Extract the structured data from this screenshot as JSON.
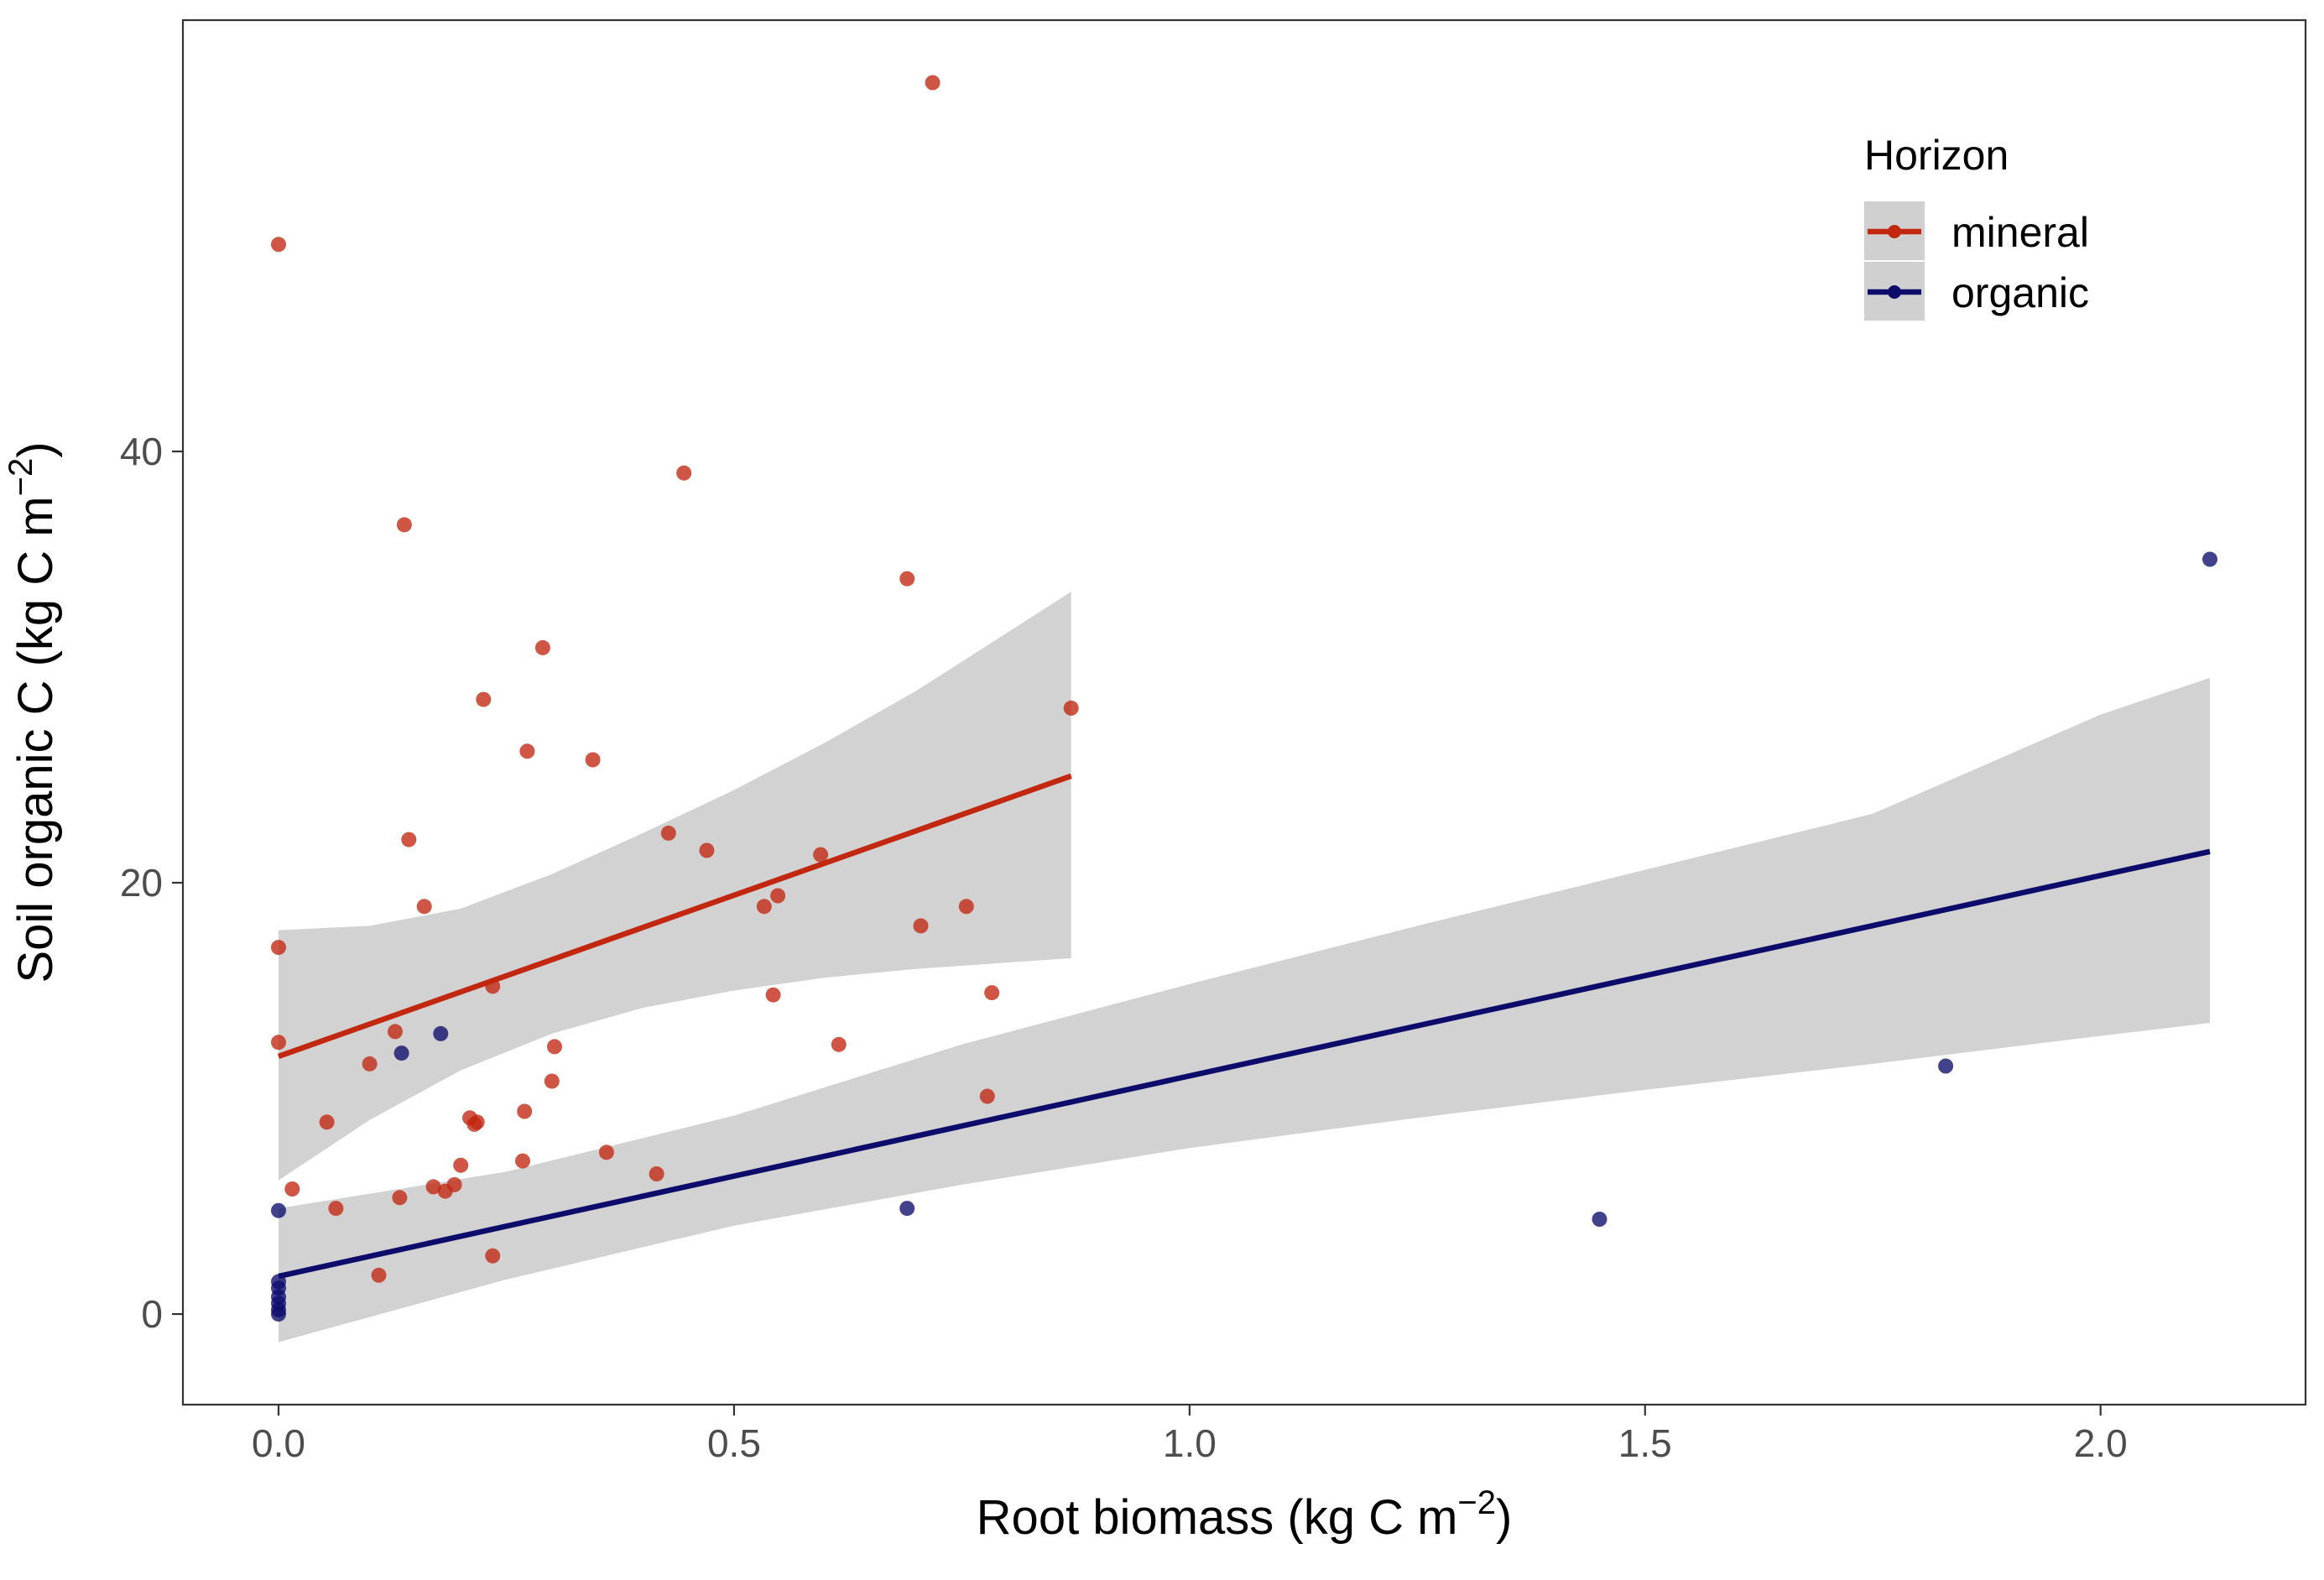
{
  "chart_data": {
    "type": "scatter",
    "title": "",
    "xlabel": {
      "main": "Root biomass (kg C m",
      "sup": "−2",
      "close": ")"
    },
    "ylabel": {
      "main": "Soil organic C (kg C m",
      "sup": "−2",
      "close": ")"
    },
    "xlim": [
      -0.105,
      2.225
    ],
    "ylim": [
      -4.2,
      60.0
    ],
    "x_ticks": [
      0.0,
      0.5,
      1.0,
      1.5,
      2.0
    ],
    "x_tick_labels": [
      "0.0",
      "0.5",
      "1.0",
      "1.5",
      "2.0"
    ],
    "y_ticks": [
      0,
      20,
      40
    ],
    "y_tick_labels": [
      "0",
      "20",
      "40"
    ],
    "grid": false,
    "legend": {
      "title": "Horizon",
      "position": "top-right"
    },
    "colors": {
      "mineral": "#c2270f",
      "organic": "#0d0c6b",
      "ribbon": "#d0d0d0",
      "panel_border": "#333333"
    },
    "series": [
      {
        "name": "mineral",
        "color": "#c2270f",
        "points": [
          [
            0.0,
            49.6
          ],
          [
            0.0,
            17.0
          ],
          [
            0.0,
            12.6
          ],
          [
            0.015,
            5.8
          ],
          [
            0.053,
            8.9
          ],
          [
            0.063,
            4.9
          ],
          [
            0.1,
            11.6
          ],
          [
            0.11,
            1.8
          ],
          [
            0.128,
            13.1
          ],
          [
            0.133,
            5.4
          ],
          [
            0.138,
            36.6
          ],
          [
            0.143,
            22.0
          ],
          [
            0.16,
            18.9
          ],
          [
            0.17,
            5.9
          ],
          [
            0.183,
            5.7
          ],
          [
            0.193,
            6.0
          ],
          [
            0.2,
            6.9
          ],
          [
            0.21,
            9.1
          ],
          [
            0.215,
            8.8
          ],
          [
            0.218,
            8.9
          ],
          [
            0.225,
            28.5
          ],
          [
            0.235,
            2.7
          ],
          [
            0.235,
            15.2
          ],
          [
            0.268,
            7.1
          ],
          [
            0.27,
            9.4
          ],
          [
            0.273,
            26.1
          ],
          [
            0.29,
            30.9
          ],
          [
            0.3,
            10.8
          ],
          [
            0.303,
            12.4
          ],
          [
            0.345,
            25.7
          ],
          [
            0.36,
            7.5
          ],
          [
            0.415,
            6.5
          ],
          [
            0.428,
            22.3
          ],
          [
            0.445,
            39.0
          ],
          [
            0.47,
            21.5
          ],
          [
            0.533,
            18.9
          ],
          [
            0.543,
            14.8
          ],
          [
            0.548,
            19.4
          ],
          [
            0.595,
            21.3
          ],
          [
            0.615,
            12.5
          ],
          [
            0.69,
            34.1
          ],
          [
            0.705,
            18.0
          ],
          [
            0.718,
            57.1
          ],
          [
            0.755,
            18.9
          ],
          [
            0.778,
            10.1
          ],
          [
            0.783,
            14.9
          ],
          [
            0.87,
            28.1
          ]
        ],
        "fit": {
          "x": [
            0.0,
            0.87
          ],
          "y": [
            11.95,
            24.95
          ]
        },
        "ribbon": {
          "x": [
            0.0,
            0.1,
            0.2,
            0.3,
            0.4,
            0.5,
            0.6,
            0.7,
            0.8,
            0.87
          ],
          "lower": [
            6.2,
            9.0,
            11.3,
            13.0,
            14.2,
            15.0,
            15.6,
            16.0,
            16.3,
            16.5
          ],
          "upper": [
            17.8,
            18.0,
            18.8,
            20.4,
            22.3,
            24.3,
            26.5,
            28.9,
            31.6,
            33.5
          ]
        }
      },
      {
        "name": "organic",
        "color": "#0d0c6b",
        "points": [
          [
            0.0,
            4.8
          ],
          [
            0.0,
            1.5
          ],
          [
            0.0,
            1.2
          ],
          [
            0.0,
            0.8
          ],
          [
            0.0,
            0.5
          ],
          [
            0.0,
            0.2
          ],
          [
            0.0,
            0.0
          ],
          [
            0.135,
            12.1
          ],
          [
            0.178,
            13.0
          ],
          [
            0.69,
            4.9
          ],
          [
            1.45,
            4.4
          ],
          [
            1.83,
            11.5
          ],
          [
            2.12,
            35.0
          ]
        ],
        "fit": {
          "x": [
            0.0,
            2.12
          ],
          "y": [
            1.75,
            21.45
          ]
        },
        "ribbon": {
          "x": [
            0.0,
            0.25,
            0.5,
            0.75,
            1.0,
            1.25,
            1.5,
            1.75,
            2.0,
            2.12
          ],
          "lower": [
            -1.3,
            1.6,
            4.1,
            6.0,
            7.7,
            9.1,
            10.4,
            11.6,
            12.9,
            13.5
          ],
          "upper": [
            4.9,
            6.6,
            9.2,
            12.5,
            15.3,
            18.0,
            20.6,
            23.2,
            27.8,
            29.5
          ]
        }
      }
    ]
  }
}
